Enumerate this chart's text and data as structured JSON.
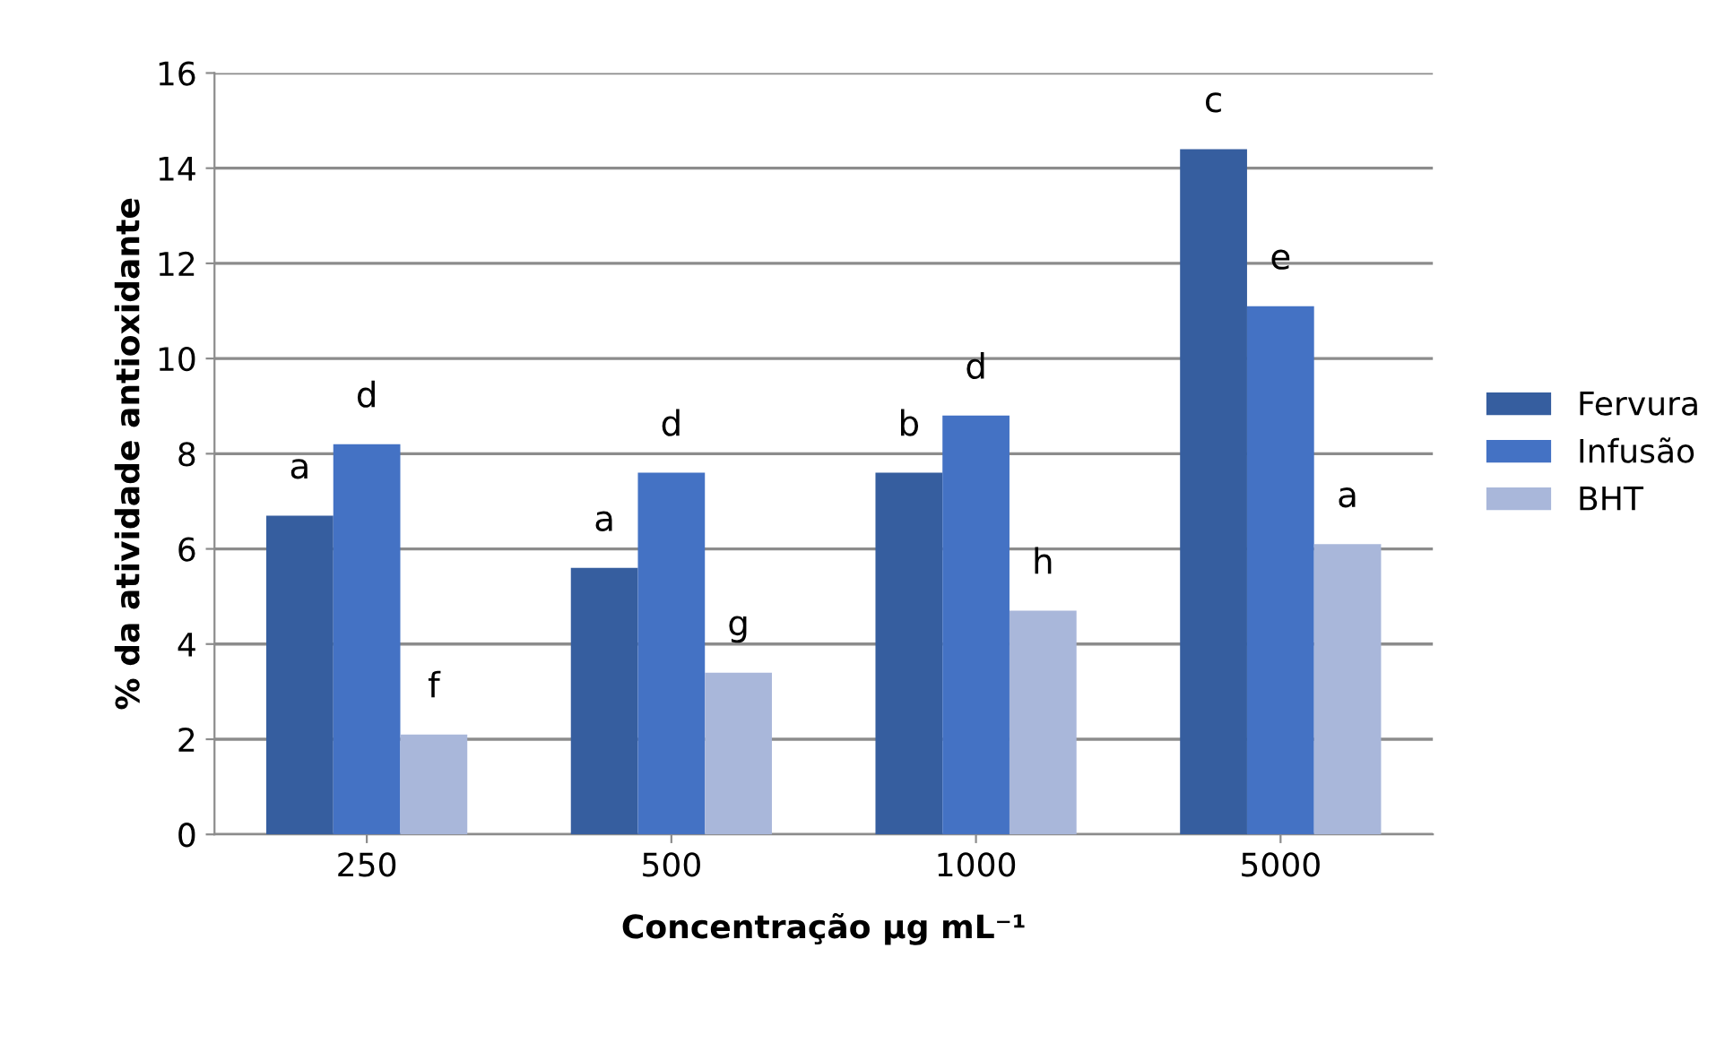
{
  "chart_data": {
    "type": "bar",
    "xlabel": "Concentração µg mL⁻¹",
    "ylabel": "% da atividade antioxidante",
    "categories": [
      "250",
      "500",
      "1000",
      "5000"
    ],
    "series": [
      {
        "name": "Fervura",
        "color": "#365e9f",
        "values": [
          6.7,
          5.6,
          7.6,
          14.4
        ],
        "value_labels": [
          "a",
          "a",
          "b",
          "c"
        ]
      },
      {
        "name": "Infusão",
        "color": "#4472c4",
        "values": [
          8.2,
          7.6,
          8.8,
          11.1
        ],
        "value_labels": [
          "d",
          "d",
          "d",
          "e"
        ]
      },
      {
        "name": "BHT",
        "color": "#a9b7da",
        "values": [
          2.1,
          3.4,
          4.7,
          6.1
        ],
        "value_labels": [
          "f",
          "g",
          "h",
          "a"
        ]
      }
    ],
    "ylim": [
      0,
      16
    ],
    "yticks": [
      0,
      2,
      4,
      6,
      8,
      10,
      12,
      14,
      16
    ],
    "grid": "y",
    "legend": "right"
  }
}
